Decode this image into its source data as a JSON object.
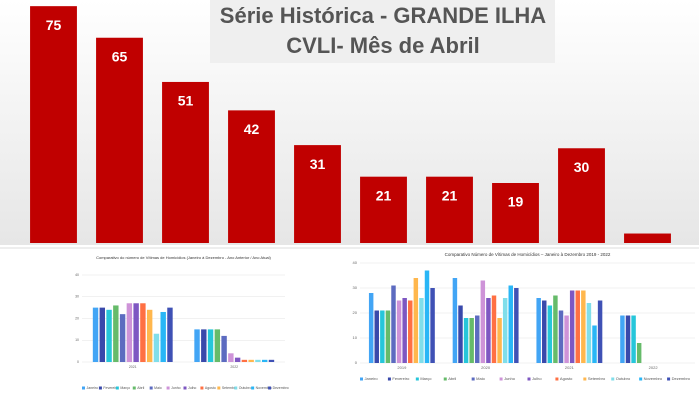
{
  "chart_data": [
    {
      "type": "bar",
      "title": "Série Histórica - GRANDE ILHA",
      "subtitle": "CVLI- Mês de Abril",
      "categories": [
        null,
        null,
        null,
        null,
        null,
        null,
        null,
        null,
        null,
        null
      ],
      "values": [
        75,
        65,
        51,
        42,
        31,
        21,
        21,
        19,
        30,
        3
      ],
      "value_labels": [
        "75",
        "65",
        "51",
        "42",
        "31",
        "21",
        "21",
        "19",
        "30",
        null
      ],
      "color": "#c00000",
      "ylim": [
        0,
        76
      ]
    },
    {
      "type": "grouped-bar",
      "title": "Comparativo do número de Vítimas de Homicídios (Janeiro à Dezembro - Ano Anterior / Ano Atual)",
      "categories": [
        "2021",
        "2022"
      ],
      "ylim": [
        0,
        40
      ],
      "yticks": [
        0,
        10,
        20,
        30,
        40
      ],
      "grid": true,
      "series": [
        {
          "name": "Janeiro",
          "color": "#42a5f5",
          "values": [
            25,
            15
          ]
        },
        {
          "name": "Fevereiro",
          "color": "#3949ab",
          "values": [
            25,
            15
          ]
        },
        {
          "name": "Março",
          "color": "#26c6da",
          "values": [
            24,
            15
          ]
        },
        {
          "name": "Abril",
          "color": "#66bb6a",
          "values": [
            26,
            15
          ]
        },
        {
          "name": "Maio",
          "color": "#5c6bc0",
          "values": [
            22,
            12
          ]
        },
        {
          "name": "Junho",
          "color": "#ce93d8",
          "values": [
            27,
            4
          ]
        },
        {
          "name": "Julho",
          "color": "#7e57c2",
          "values": [
            27,
            2
          ]
        },
        {
          "name": "Agosto",
          "color": "#ff7043",
          "values": [
            27,
            1
          ]
        },
        {
          "name": "Setembro",
          "color": "#ffb74d",
          "values": [
            24,
            1
          ]
        },
        {
          "name": "Outubro",
          "color": "#80deea",
          "values": [
            13,
            1
          ]
        },
        {
          "name": "Novembro",
          "color": "#29b6f6",
          "values": [
            23,
            1
          ]
        },
        {
          "name": "Dezembro",
          "color": "#3f51b5",
          "values": [
            25,
            1
          ]
        }
      ]
    },
    {
      "type": "grouped-bar",
      "title": "Comparativo Número de Vítimas de Homicídios – Janeiro à Dezembro 2019 - 2022",
      "categories": [
        "2019",
        "2020",
        "2021",
        "2022"
      ],
      "ylim": [
        0,
        40
      ],
      "yticks": [
        0,
        10,
        20,
        30,
        40
      ],
      "grid": true,
      "series": [
        {
          "name": "Janeiro",
          "color": "#42a5f5",
          "values": [
            28,
            34,
            26,
            19
          ]
        },
        {
          "name": "Fevereiro",
          "color": "#3949ab",
          "values": [
            21,
            23,
            25,
            19
          ]
        },
        {
          "name": "Março",
          "color": "#26c6da",
          "values": [
            21,
            18,
            23,
            19
          ]
        },
        {
          "name": "Abril",
          "color": "#66bb6a",
          "values": [
            21,
            18,
            27,
            8
          ]
        },
        {
          "name": "Maio",
          "color": "#5c6bc0",
          "values": [
            31,
            19,
            21,
            null
          ]
        },
        {
          "name": "Junho",
          "color": "#ce93d8",
          "values": [
            25,
            33,
            19,
            null
          ]
        },
        {
          "name": "Julho",
          "color": "#7e57c2",
          "values": [
            26,
            26,
            29,
            null
          ]
        },
        {
          "name": "Agosto",
          "color": "#ff7043",
          "values": [
            25,
            27,
            29,
            null
          ]
        },
        {
          "name": "Setembro",
          "color": "#ffb74d",
          "values": [
            34,
            18,
            29,
            null
          ]
        },
        {
          "name": "Outubro",
          "color": "#80deea",
          "values": [
            26,
            26,
            24,
            null
          ]
        },
        {
          "name": "Novembro",
          "color": "#29b6f6",
          "values": [
            37,
            31,
            15,
            null
          ]
        },
        {
          "name": "Dezembro",
          "color": "#3f51b5",
          "values": [
            30,
            30,
            25,
            null
          ]
        }
      ]
    }
  ]
}
